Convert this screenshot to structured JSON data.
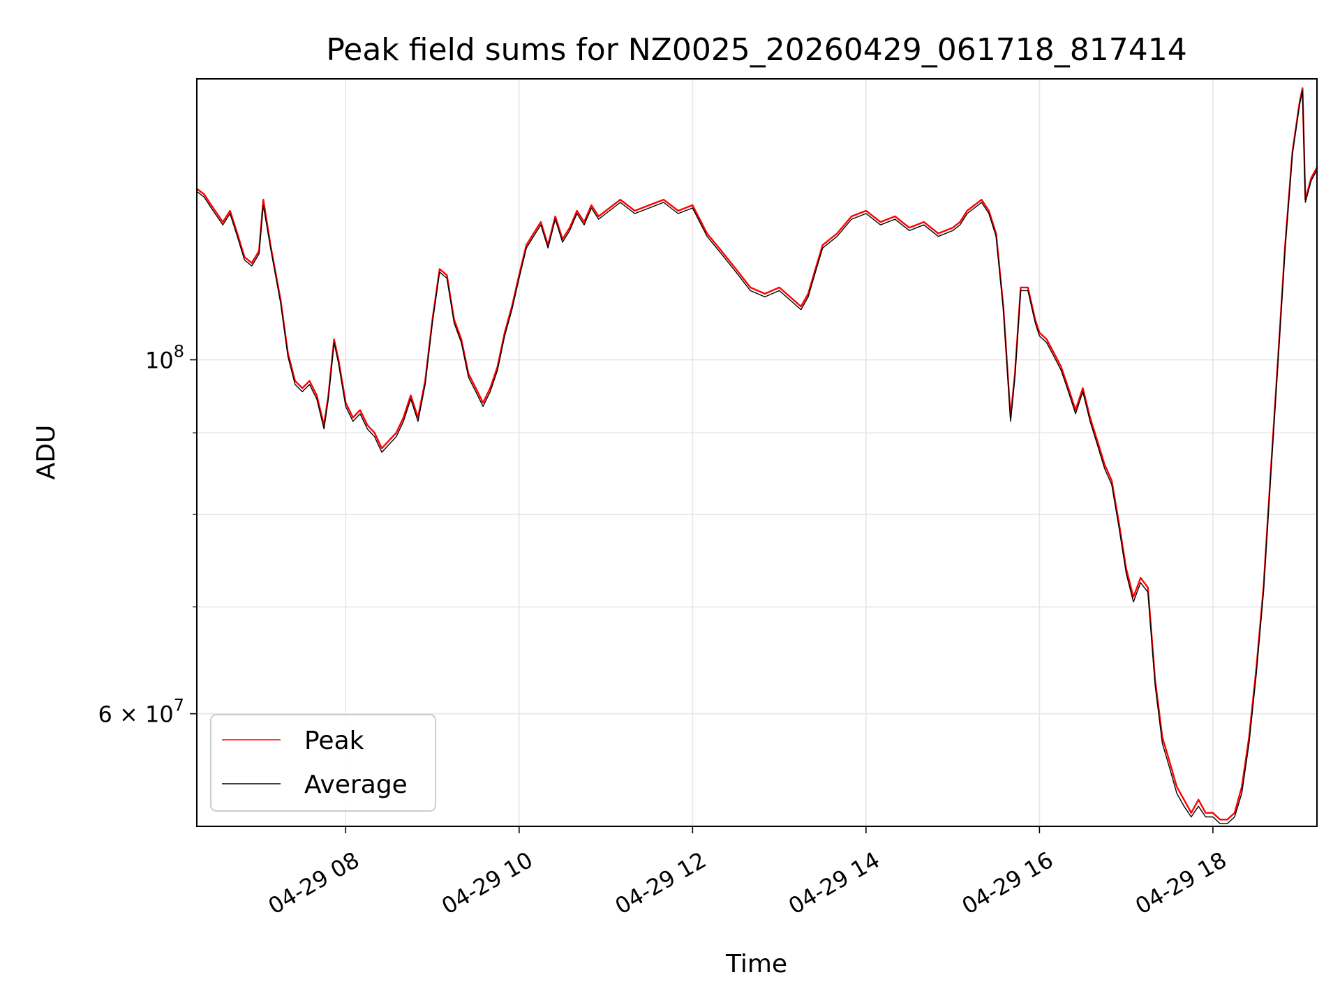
{
  "chart_data": {
    "type": "line",
    "title": "Peak field sums for NZ0025_20260429_061718_817414",
    "xlabel": "Time",
    "ylabel": "ADU",
    "yscale": "log",
    "xlim": [
      "2026-04-29 06:17",
      "2026-04-29 19:12"
    ],
    "ylim": [
      51000000,
      150000000
    ],
    "grid": true,
    "legend_position": "lower-left",
    "x_ticks": [
      {
        "time": "2026-04-29 08:00",
        "label": "04-29 08"
      },
      {
        "time": "2026-04-29 10:00",
        "label": "04-29 10"
      },
      {
        "time": "2026-04-29 12:00",
        "label": "04-29 12"
      },
      {
        "time": "2026-04-29 14:00",
        "label": "04-29 14"
      },
      {
        "time": "2026-04-29 16:00",
        "label": "04-29 16"
      },
      {
        "time": "2026-04-29 18:00",
        "label": "04-29 18"
      }
    ],
    "y_major_ticks": [
      {
        "value": 60000000,
        "base": "6 × 10",
        "exp": "7"
      },
      {
        "value": 100000000,
        "base": "10",
        "exp": "8"
      }
    ],
    "y_minor_gridlines": [
      70000000,
      80000000,
      90000000,
      200000000
    ],
    "series": [
      {
        "name": "Peak",
        "color": "#ff0000",
        "points": [
          [
            "06:17",
            128000000
          ],
          [
            "06:22",
            127000000
          ],
          [
            "06:27",
            125000000
          ],
          [
            "06:35",
            122000000
          ],
          [
            "06:40",
            124000000
          ],
          [
            "06:45",
            120000000
          ],
          [
            "06:50",
            116000000
          ],
          [
            "06:55",
            115000000
          ],
          [
            "07:00",
            117000000
          ],
          [
            "07:03",
            126000000
          ],
          [
            "07:08",
            118000000
          ],
          [
            "07:15",
            109000000
          ],
          [
            "07:20",
            101000000
          ],
          [
            "07:25",
            97000000
          ],
          [
            "07:30",
            96000000
          ],
          [
            "07:35",
            97000000
          ],
          [
            "07:40",
            95000000
          ],
          [
            "07:45",
            91000000
          ],
          [
            "07:48",
            95000000
          ],
          [
            "07:52",
            103000000
          ],
          [
            "07:55",
            100000000
          ],
          [
            "08:00",
            94000000
          ],
          [
            "08:05",
            92000000
          ],
          [
            "08:10",
            93000000
          ],
          [
            "08:15",
            91000000
          ],
          [
            "08:20",
            90000000
          ],
          [
            "08:25",
            88000000
          ],
          [
            "08:30",
            89000000
          ],
          [
            "08:35",
            90000000
          ],
          [
            "08:40",
            92000000
          ],
          [
            "08:45",
            95000000
          ],
          [
            "08:50",
            92000000
          ],
          [
            "08:55",
            97000000
          ],
          [
            "09:00",
            106000000
          ],
          [
            "09:05",
            114000000
          ],
          [
            "09:10",
            113000000
          ],
          [
            "09:15",
            106000000
          ],
          [
            "09:20",
            103000000
          ],
          [
            "09:25",
            98000000
          ],
          [
            "09:30",
            96000000
          ],
          [
            "09:35",
            94000000
          ],
          [
            "09:40",
            96000000
          ],
          [
            "09:45",
            99000000
          ],
          [
            "09:50",
            104000000
          ],
          [
            "09:55",
            108000000
          ],
          [
            "10:00",
            113000000
          ],
          [
            "10:05",
            118000000
          ],
          [
            "10:10",
            120000000
          ],
          [
            "10:15",
            122000000
          ],
          [
            "10:20",
            118000000
          ],
          [
            "10:25",
            123000000
          ],
          [
            "10:30",
            119000000
          ],
          [
            "10:35",
            121000000
          ],
          [
            "10:40",
            124000000
          ],
          [
            "10:45",
            122000000
          ],
          [
            "10:50",
            125000000
          ],
          [
            "10:55",
            123000000
          ],
          [
            "11:00",
            124000000
          ],
          [
            "11:10",
            126000000
          ],
          [
            "11:20",
            124000000
          ],
          [
            "11:30",
            125000000
          ],
          [
            "11:40",
            126000000
          ],
          [
            "11:50",
            124000000
          ],
          [
            "12:00",
            125000000
          ],
          [
            "12:10",
            120000000
          ],
          [
            "12:20",
            117000000
          ],
          [
            "12:30",
            114000000
          ],
          [
            "12:40",
            111000000
          ],
          [
            "12:50",
            110000000
          ],
          [
            "13:00",
            111000000
          ],
          [
            "13:10",
            109000000
          ],
          [
            "13:15",
            108000000
          ],
          [
            "13:20",
            110000000
          ],
          [
            "13:25",
            114000000
          ],
          [
            "13:30",
            118000000
          ],
          [
            "13:40",
            120000000
          ],
          [
            "13:50",
            123000000
          ],
          [
            "14:00",
            124000000
          ],
          [
            "14:10",
            122000000
          ],
          [
            "14:20",
            123000000
          ],
          [
            "14:30",
            121000000
          ],
          [
            "14:40",
            122000000
          ],
          [
            "14:50",
            120000000
          ],
          [
            "15:00",
            121000000
          ],
          [
            "15:05",
            122000000
          ],
          [
            "15:10",
            124000000
          ],
          [
            "15:15",
            125000000
          ],
          [
            "15:20",
            126000000
          ],
          [
            "15:25",
            124000000
          ],
          [
            "15:30",
            120000000
          ],
          [
            "15:35",
            108000000
          ],
          [
            "15:40",
            92000000
          ],
          [
            "15:43",
            98000000
          ],
          [
            "15:47",
            111000000
          ],
          [
            "15:52",
            111000000
          ],
          [
            "15:57",
            106000000
          ],
          [
            "16:00",
            104000000
          ],
          [
            "16:05",
            103000000
          ],
          [
            "16:10",
            101000000
          ],
          [
            "16:15",
            99000000
          ],
          [
            "16:20",
            96000000
          ],
          [
            "16:25",
            93000000
          ],
          [
            "16:30",
            96000000
          ],
          [
            "16:35",
            92000000
          ],
          [
            "16:40",
            89000000
          ],
          [
            "16:45",
            86000000
          ],
          [
            "16:50",
            84000000
          ],
          [
            "16:55",
            79000000
          ],
          [
            "17:00",
            74000000
          ],
          [
            "17:05",
            71000000
          ],
          [
            "17:10",
            73000000
          ],
          [
            "17:15",
            72000000
          ],
          [
            "17:20",
            63000000
          ],
          [
            "17:25",
            58000000
          ],
          [
            "17:30",
            56000000
          ],
          [
            "17:35",
            54000000
          ],
          [
            "17:40",
            53000000
          ],
          [
            "17:45",
            52000000
          ],
          [
            "17:50",
            53000000
          ],
          [
            "17:55",
            52000000
          ],
          [
            "18:00",
            52000000
          ],
          [
            "18:05",
            51500000
          ],
          [
            "18:10",
            51500000
          ],
          [
            "18:15",
            52000000
          ],
          [
            "18:20",
            54000000
          ],
          [
            "18:25",
            58000000
          ],
          [
            "18:30",
            64000000
          ],
          [
            "18:35",
            72000000
          ],
          [
            "18:40",
            85000000
          ],
          [
            "18:45",
            100000000
          ],
          [
            "18:50",
            118000000
          ],
          [
            "18:55",
            135000000
          ],
          [
            "19:00",
            145000000
          ],
          [
            "19:02",
            148000000
          ],
          [
            "19:04",
            126000000
          ],
          [
            "19:08",
            130000000
          ],
          [
            "19:12",
            132000000
          ]
        ]
      },
      {
        "name": "Average",
        "color": "#000000",
        "points": [
          [
            "06:17",
            127500000
          ],
          [
            "06:22",
            126500000
          ],
          [
            "06:27",
            124500000
          ],
          [
            "06:35",
            121500000
          ],
          [
            "06:40",
            123500000
          ],
          [
            "06:45",
            119500000
          ],
          [
            "06:50",
            115500000
          ],
          [
            "06:55",
            114500000
          ],
          [
            "07:00",
            116500000
          ],
          [
            "07:03",
            125000000
          ],
          [
            "07:08",
            117500000
          ],
          [
            "07:15",
            108500000
          ],
          [
            "07:20",
            100500000
          ],
          [
            "07:25",
            96500000
          ],
          [
            "07:30",
            95500000
          ],
          [
            "07:35",
            96500000
          ],
          [
            "07:40",
            94500000
          ],
          [
            "07:45",
            90500000
          ],
          [
            "07:48",
            94500000
          ],
          [
            "07:52",
            102500000
          ],
          [
            "07:55",
            99500000
          ],
          [
            "08:00",
            93500000
          ],
          [
            "08:05",
            91500000
          ],
          [
            "08:10",
            92500000
          ],
          [
            "08:15",
            90500000
          ],
          [
            "08:20",
            89500000
          ],
          [
            "08:25",
            87500000
          ],
          [
            "08:30",
            88500000
          ],
          [
            "08:35",
            89500000
          ],
          [
            "08:40",
            91500000
          ],
          [
            "08:45",
            94500000
          ],
          [
            "08:50",
            91500000
          ],
          [
            "08:55",
            96500000
          ],
          [
            "09:00",
            105500000
          ],
          [
            "09:05",
            113500000
          ],
          [
            "09:10",
            112500000
          ],
          [
            "09:15",
            105500000
          ],
          [
            "09:20",
            102500000
          ],
          [
            "09:25",
            97500000
          ],
          [
            "09:30",
            95500000
          ],
          [
            "09:35",
            93500000
          ],
          [
            "09:40",
            95500000
          ],
          [
            "09:45",
            98500000
          ],
          [
            "09:50",
            103500000
          ],
          [
            "09:55",
            107500000
          ],
          [
            "10:00",
            112500000
          ],
          [
            "10:05",
            117500000
          ],
          [
            "10:10",
            119500000
          ],
          [
            "10:15",
            121500000
          ],
          [
            "10:20",
            117500000
          ],
          [
            "10:25",
            122500000
          ],
          [
            "10:30",
            118500000
          ],
          [
            "10:35",
            120500000
          ],
          [
            "10:40",
            123500000
          ],
          [
            "10:45",
            121500000
          ],
          [
            "10:50",
            124500000
          ],
          [
            "10:55",
            122500000
          ],
          [
            "11:00",
            123500000
          ],
          [
            "11:10",
            125500000
          ],
          [
            "11:20",
            123500000
          ],
          [
            "11:30",
            124500000
          ],
          [
            "11:40",
            125500000
          ],
          [
            "11:50",
            123500000
          ],
          [
            "12:00",
            124500000
          ],
          [
            "12:10",
            119500000
          ],
          [
            "12:20",
            116500000
          ],
          [
            "12:30",
            113500000
          ],
          [
            "12:40",
            110500000
          ],
          [
            "12:50",
            109500000
          ],
          [
            "13:00",
            110500000
          ],
          [
            "13:10",
            108500000
          ],
          [
            "13:15",
            107500000
          ],
          [
            "13:20",
            109500000
          ],
          [
            "13:25",
            113500000
          ],
          [
            "13:30",
            117500000
          ],
          [
            "13:40",
            119500000
          ],
          [
            "13:50",
            122500000
          ],
          [
            "14:00",
            123500000
          ],
          [
            "14:10",
            121500000
          ],
          [
            "14:20",
            122500000
          ],
          [
            "14:30",
            120500000
          ],
          [
            "14:40",
            121500000
          ],
          [
            "14:50",
            119500000
          ],
          [
            "15:00",
            120500000
          ],
          [
            "15:05",
            121500000
          ],
          [
            "15:10",
            123500000
          ],
          [
            "15:15",
            124500000
          ],
          [
            "15:20",
            125500000
          ],
          [
            "15:25",
            123500000
          ],
          [
            "15:30",
            119500000
          ],
          [
            "15:35",
            107500000
          ],
          [
            "15:40",
            91500000
          ],
          [
            "15:43",
            97500000
          ],
          [
            "15:47",
            110500000
          ],
          [
            "15:52",
            110500000
          ],
          [
            "15:57",
            105500000
          ],
          [
            "16:00",
            103500000
          ],
          [
            "16:05",
            102500000
          ],
          [
            "16:10",
            100500000
          ],
          [
            "16:15",
            98500000
          ],
          [
            "16:20",
            95500000
          ],
          [
            "16:25",
            92500000
          ],
          [
            "16:30",
            95500000
          ],
          [
            "16:35",
            91500000
          ],
          [
            "16:40",
            88500000
          ],
          [
            "16:45",
            85500000
          ],
          [
            "16:50",
            83500000
          ],
          [
            "16:55",
            78500000
          ],
          [
            "17:00",
            73500000
          ],
          [
            "17:05",
            70500000
          ],
          [
            "17:10",
            72500000
          ],
          [
            "17:15",
            71500000
          ],
          [
            "17:20",
            62500000
          ],
          [
            "17:25",
            57500000
          ],
          [
            "17:30",
            55500000
          ],
          [
            "17:35",
            53500000
          ],
          [
            "17:40",
            52500000
          ],
          [
            "17:45",
            51700000
          ],
          [
            "17:50",
            52500000
          ],
          [
            "17:55",
            51700000
          ],
          [
            "18:00",
            51700000
          ],
          [
            "18:05",
            51200000
          ],
          [
            "18:10",
            51200000
          ],
          [
            "18:15",
            51700000
          ],
          [
            "18:20",
            53500000
          ],
          [
            "18:25",
            57500000
          ],
          [
            "18:30",
            63500000
          ],
          [
            "18:35",
            71500000
          ],
          [
            "18:40",
            84500000
          ],
          [
            "18:45",
            99500000
          ],
          [
            "18:50",
            117500000
          ],
          [
            "18:55",
            134500000
          ],
          [
            "19:00",
            144500000
          ],
          [
            "19:02",
            147500000
          ],
          [
            "19:04",
            125500000
          ],
          [
            "19:08",
            129500000
          ],
          [
            "19:12",
            131500000
          ]
        ]
      }
    ]
  }
}
